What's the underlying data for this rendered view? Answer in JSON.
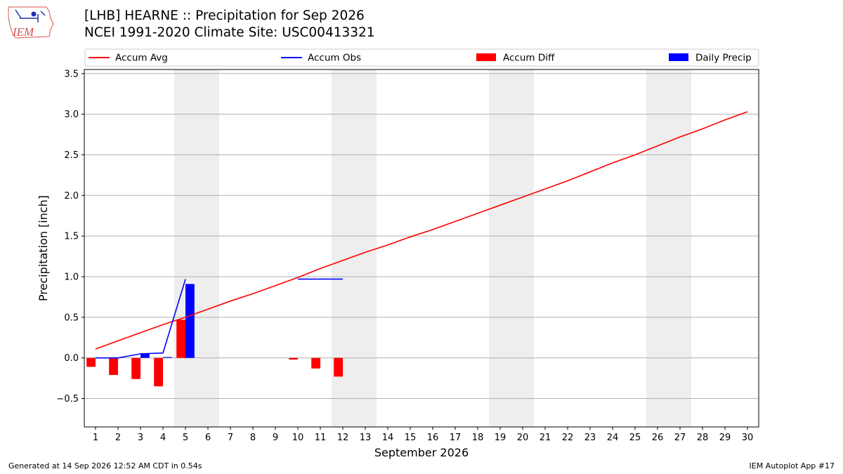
{
  "header": {
    "title_line1": "[LHB] HEARNE :: Precipitation for Sep 2026",
    "title_line2": "NCEI 1991-2020 Climate Site: USC00413321",
    "logo_text": "IEM"
  },
  "footer": {
    "generated": "Generated at 14 Sep 2026 12:52 AM CDT in 0.54s",
    "app": "IEM Autoplot App #17"
  },
  "colors": {
    "avg": "#ff0000",
    "obs": "#0000ff",
    "diff": "#ff0000",
    "daily": "#0000ff",
    "weekend": "#eeeeee",
    "grid": "#b0b0b0"
  },
  "chart_data": {
    "type": "bar",
    "xlabel": "September 2026",
    "ylabel": "Precipitation [inch]",
    "ylim": [
      -0.85,
      3.55
    ],
    "yticks": [
      -0.5,
      0.0,
      0.5,
      1.0,
      1.5,
      2.0,
      2.5,
      3.0,
      3.5
    ],
    "ytick_labels": [
      "−0.5",
      "0.0",
      "0.5",
      "1.0",
      "1.5",
      "2.0",
      "2.5",
      "3.0",
      "3.5"
    ],
    "xlim": [
      0.5,
      30.5
    ],
    "x": [
      1,
      2,
      3,
      4,
      5,
      6,
      7,
      8,
      9,
      10,
      11,
      12,
      13,
      14,
      15,
      16,
      17,
      18,
      19,
      20,
      21,
      22,
      23,
      24,
      25,
      26,
      27,
      28,
      29,
      30
    ],
    "xtick_labels": [
      "1",
      "2",
      "3",
      "4",
      "5",
      "6",
      "7",
      "8",
      "9",
      "10",
      "11",
      "12",
      "13",
      "14",
      "15",
      "16",
      "17",
      "18",
      "19",
      "20",
      "21",
      "22",
      "23",
      "24",
      "25",
      "26",
      "27",
      "28",
      "29",
      "30"
    ],
    "grid": "horizontal",
    "legend_position": "top",
    "weekend_bands": [
      [
        5,
        6
      ],
      [
        12,
        13
      ],
      [
        19,
        20
      ],
      [
        26,
        27
      ]
    ],
    "series": [
      {
        "name": "Accum Avg",
        "type": "line",
        "x": [
          1,
          2,
          3,
          4,
          5,
          6,
          7,
          8,
          9,
          10,
          11,
          12,
          13,
          14,
          15,
          16,
          17,
          18,
          19,
          20,
          21,
          22,
          23,
          24,
          25,
          26,
          27,
          28,
          29,
          30
        ],
        "values": [
          0.11,
          0.21,
          0.31,
          0.41,
          0.5,
          0.6,
          0.7,
          0.79,
          0.89,
          0.99,
          1.1,
          1.2,
          1.3,
          1.39,
          1.49,
          1.58,
          1.68,
          1.78,
          1.88,
          1.98,
          2.08,
          2.18,
          2.29,
          2.4,
          2.5,
          2.61,
          2.72,
          2.82,
          2.93,
          3.03
        ]
      },
      {
        "name": "Accum Obs",
        "type": "line",
        "x": [
          1,
          2,
          3,
          4,
          5
        ],
        "values": [
          0.0,
          0.0,
          0.05,
          0.06,
          0.97
        ]
      },
      {
        "name": "Accum Obs (segment)",
        "type": "line",
        "x": [
          10,
          12
        ],
        "values": [
          0.97,
          0.97
        ]
      },
      {
        "name": "Accum Diff",
        "type": "bar",
        "x": [
          1,
          2,
          3,
          4,
          5,
          10,
          11,
          12
        ],
        "values": [
          -0.11,
          -0.21,
          -0.26,
          -0.35,
          0.47,
          -0.02,
          -0.13,
          -0.23
        ]
      },
      {
        "name": "Daily Precip",
        "type": "bar",
        "x": [
          3,
          4,
          5
        ],
        "values": [
          0.05,
          0.01,
          0.91
        ]
      }
    ],
    "legend": [
      "Accum Avg",
      "Accum Obs",
      "Accum Diff",
      "Daily Precip"
    ]
  }
}
